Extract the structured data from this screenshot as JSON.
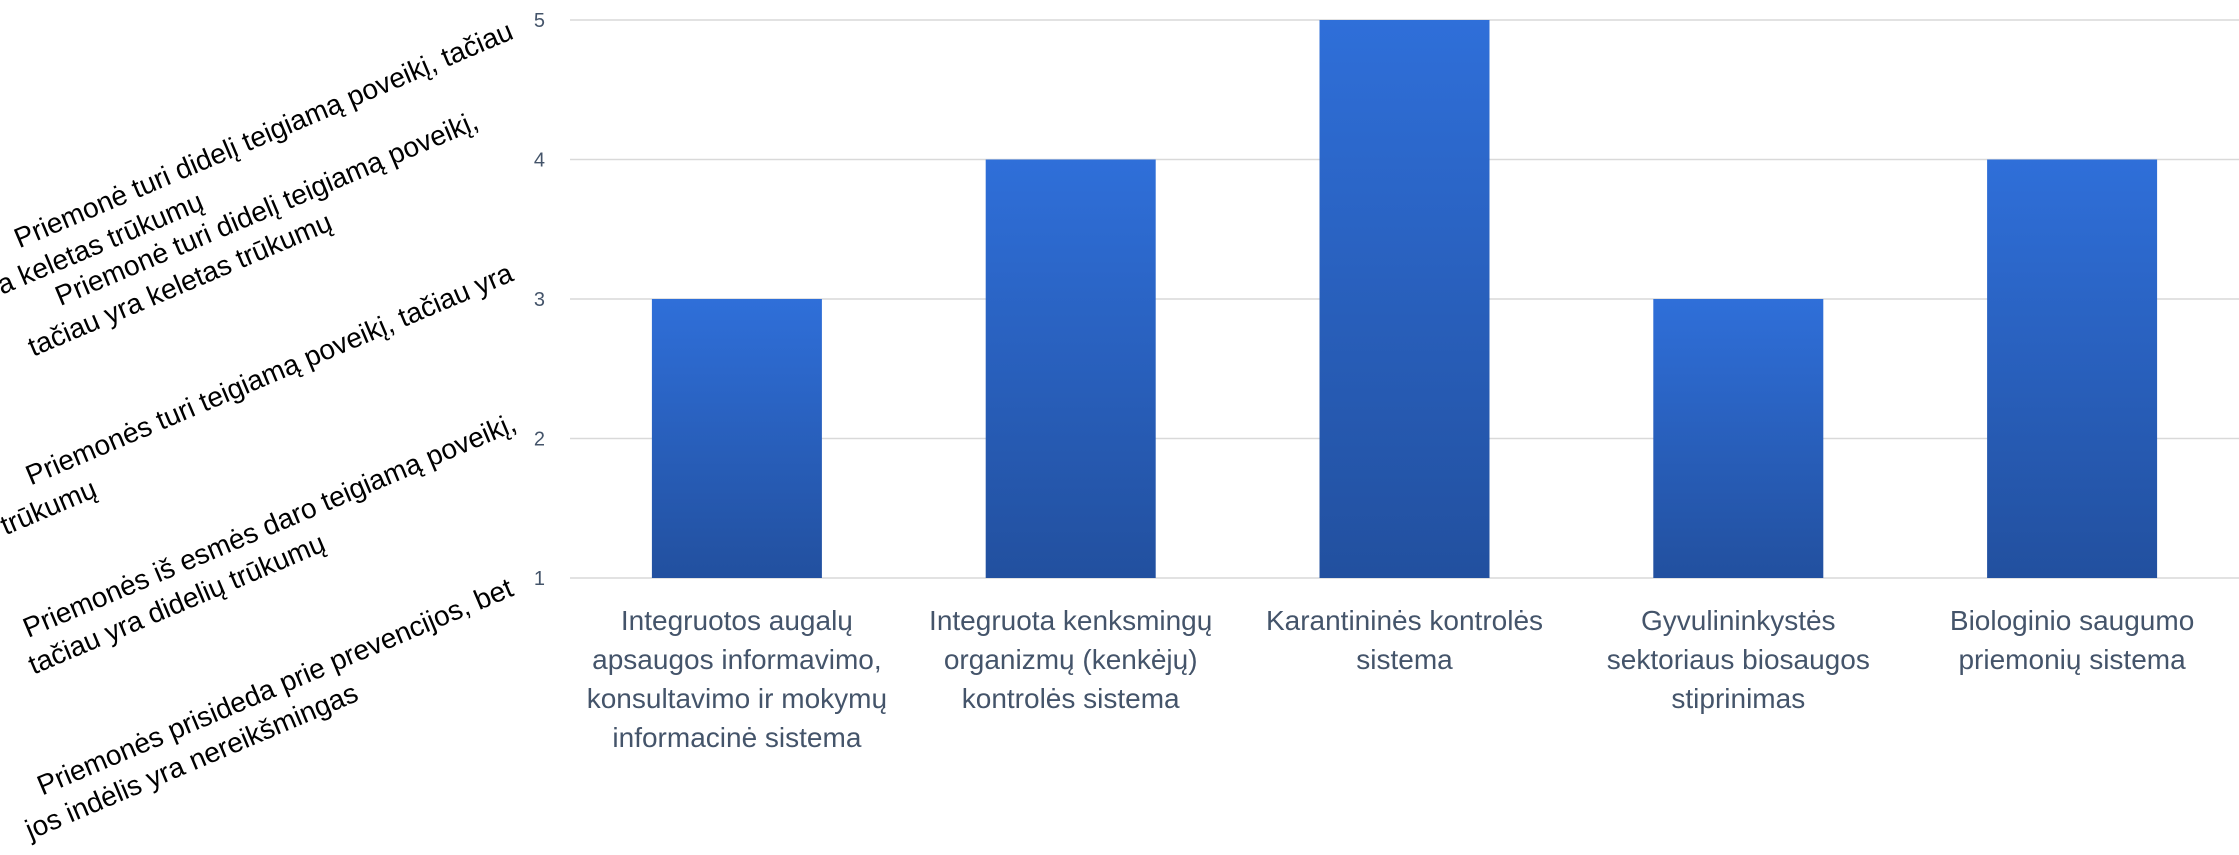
{
  "chart_data": {
    "type": "bar",
    "title": "",
    "xlabel": "",
    "ylabel": "",
    "ylim": [
      1,
      5
    ],
    "yticks": [
      1,
      2,
      3,
      4,
      5
    ],
    "grid": true,
    "colors": {
      "bar_top": "#2f6fd9",
      "bar_bottom": "#22509f",
      "grid": "#d9d9d9",
      "tick": "#44546a"
    },
    "categories": [
      [
        "Integruotos augalų",
        "apsaugos informavimo,",
        "konsultavimo ir mokymų",
        "informacinė sistema"
      ],
      [
        "Integruota kenksmingų",
        "organizmų (kenkėjų)",
        "kontrolės sistema"
      ],
      [
        "Karantininės kontrolės",
        "sistema"
      ],
      [
        "Gyvulininkystės",
        "sektoriaus biosaugos",
        "stiprinimas"
      ],
      [
        "Biologinio saugumo",
        "priemonių sistema"
      ]
    ],
    "values": [
      3,
      4,
      5,
      3,
      4
    ],
    "scale_labels": [
      [
        "Priemonė turi didelį teigiamą poveikį, tačiau",
        "yra keletas trūkumų"
      ],
      [
        "Priemonė turi didelį teigiamą poveikį,",
        "tačiau yra keletas trūkumų"
      ],
      [
        "Priemonės turi teigiamą poveikį, tačiau yra",
        "trūkumų"
      ],
      [
        "Priemonės iš esmės daro teigiamą poveikį,",
        "tačiau yra didelių trūkumų"
      ],
      [
        "Priemonės prisideda prie prevencijos, bet",
        "jos indėlis yra nereikšmingas"
      ]
    ]
  }
}
